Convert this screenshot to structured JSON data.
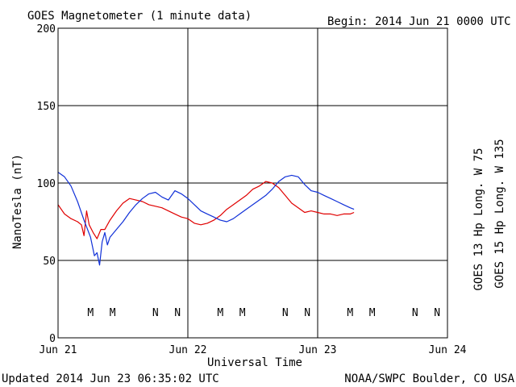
{
  "header": {
    "title": "GOES Magnetometer (1 minute data)",
    "begin": "Begin:  2014 Jun 21 0000 UTC"
  },
  "footer": {
    "updated": "Updated 2014 Jun 23 06:35:02 UTC",
    "credit": "NOAA/SWPC Boulder, CO USA"
  },
  "colors": {
    "goes13": "#e00000",
    "goes15": "#1030d8"
  },
  "chart_data": {
    "type": "line",
    "title": "GOES Magnetometer (1 minute data)",
    "xlabel": "Universal Time",
    "ylabel": "NanoTesla (nT)",
    "xlim_days": [
      0,
      3
    ],
    "ylim": [
      0,
      200
    ],
    "x_ticks": [
      "Jun 21",
      "Jun 22",
      "Jun 23",
      "Jun 24"
    ],
    "y_ticks": [
      0,
      50,
      100,
      150,
      200
    ],
    "grid": true,
    "legend_placement": "right",
    "series": [
      {
        "name": "GOES 13 Hp  Long. W 75",
        "color": "#e00000",
        "x_days": [
          0.0,
          0.05,
          0.1,
          0.15,
          0.18,
          0.2,
          0.22,
          0.24,
          0.27,
          0.3,
          0.33,
          0.36,
          0.4,
          0.45,
          0.5,
          0.55,
          0.6,
          0.65,
          0.7,
          0.75,
          0.8,
          0.85,
          0.9,
          0.95,
          1.0,
          1.05,
          1.1,
          1.15,
          1.2,
          1.25,
          1.3,
          1.35,
          1.4,
          1.45,
          1.5,
          1.55,
          1.6,
          1.65,
          1.7,
          1.75,
          1.8,
          1.85,
          1.9,
          1.95,
          2.0,
          2.05,
          2.1,
          2.15,
          2.2,
          2.25,
          2.28
        ],
        "values": [
          86,
          80,
          77,
          75,
          73,
          66,
          82,
          73,
          68,
          64,
          70,
          70,
          76,
          82,
          87,
          90,
          89,
          88,
          86,
          85,
          84,
          82,
          80,
          78,
          77,
          74,
          73,
          74,
          76,
          79,
          83,
          86,
          89,
          92,
          96,
          98,
          101,
          100,
          97,
          92,
          87,
          84,
          81,
          82,
          81,
          80,
          80,
          79,
          80,
          80,
          81
        ]
      },
      {
        "name": "GOES 15 Hp  Long. W 135",
        "color": "#1030d8",
        "x_days": [
          0.0,
          0.05,
          0.1,
          0.15,
          0.2,
          0.25,
          0.28,
          0.3,
          0.32,
          0.34,
          0.36,
          0.38,
          0.4,
          0.45,
          0.5,
          0.55,
          0.6,
          0.65,
          0.7,
          0.75,
          0.8,
          0.85,
          0.9,
          0.95,
          1.0,
          1.05,
          1.1,
          1.15,
          1.2,
          1.25,
          1.3,
          1.35,
          1.4,
          1.45,
          1.5,
          1.55,
          1.6,
          1.65,
          1.7,
          1.75,
          1.8,
          1.85,
          1.9,
          1.95,
          2.0,
          2.05,
          2.1,
          2.15,
          2.2,
          2.25,
          2.28
        ],
        "values": [
          107,
          104,
          98,
          88,
          76,
          65,
          53,
          55,
          47,
          62,
          68,
          60,
          65,
          70,
          75,
          81,
          86,
          90,
          93,
          94,
          91,
          89,
          95,
          93,
          90,
          86,
          82,
          80,
          78,
          76,
          75,
          77,
          80,
          83,
          86,
          89,
          92,
          96,
          101,
          104,
          105,
          104,
          99,
          95,
          94,
          92,
          90,
          88,
          86,
          84,
          83
        ]
      }
    ],
    "markers": [
      {
        "label": "M",
        "x_days": 0.25,
        "series": "GOES 13"
      },
      {
        "label": "M",
        "x_days": 0.42,
        "series": "GOES 15"
      },
      {
        "label": "N",
        "x_days": 0.75,
        "series": "GOES 13"
      },
      {
        "label": "N",
        "x_days": 0.92,
        "series": "GOES 15"
      },
      {
        "label": "M",
        "x_days": 1.25,
        "series": "GOES 13"
      },
      {
        "label": "M",
        "x_days": 1.42,
        "series": "GOES 15"
      },
      {
        "label": "N",
        "x_days": 1.75,
        "series": "GOES 13"
      },
      {
        "label": "N",
        "x_days": 1.92,
        "series": "GOES 15"
      },
      {
        "label": "M",
        "x_days": 2.25,
        "series": "GOES 13"
      },
      {
        "label": "M",
        "x_days": 2.42,
        "series": "GOES 15"
      },
      {
        "label": "N",
        "x_days": 2.75,
        "series": "GOES 13"
      },
      {
        "label": "N",
        "x_days": 2.92,
        "series": "GOES 15"
      }
    ]
  }
}
